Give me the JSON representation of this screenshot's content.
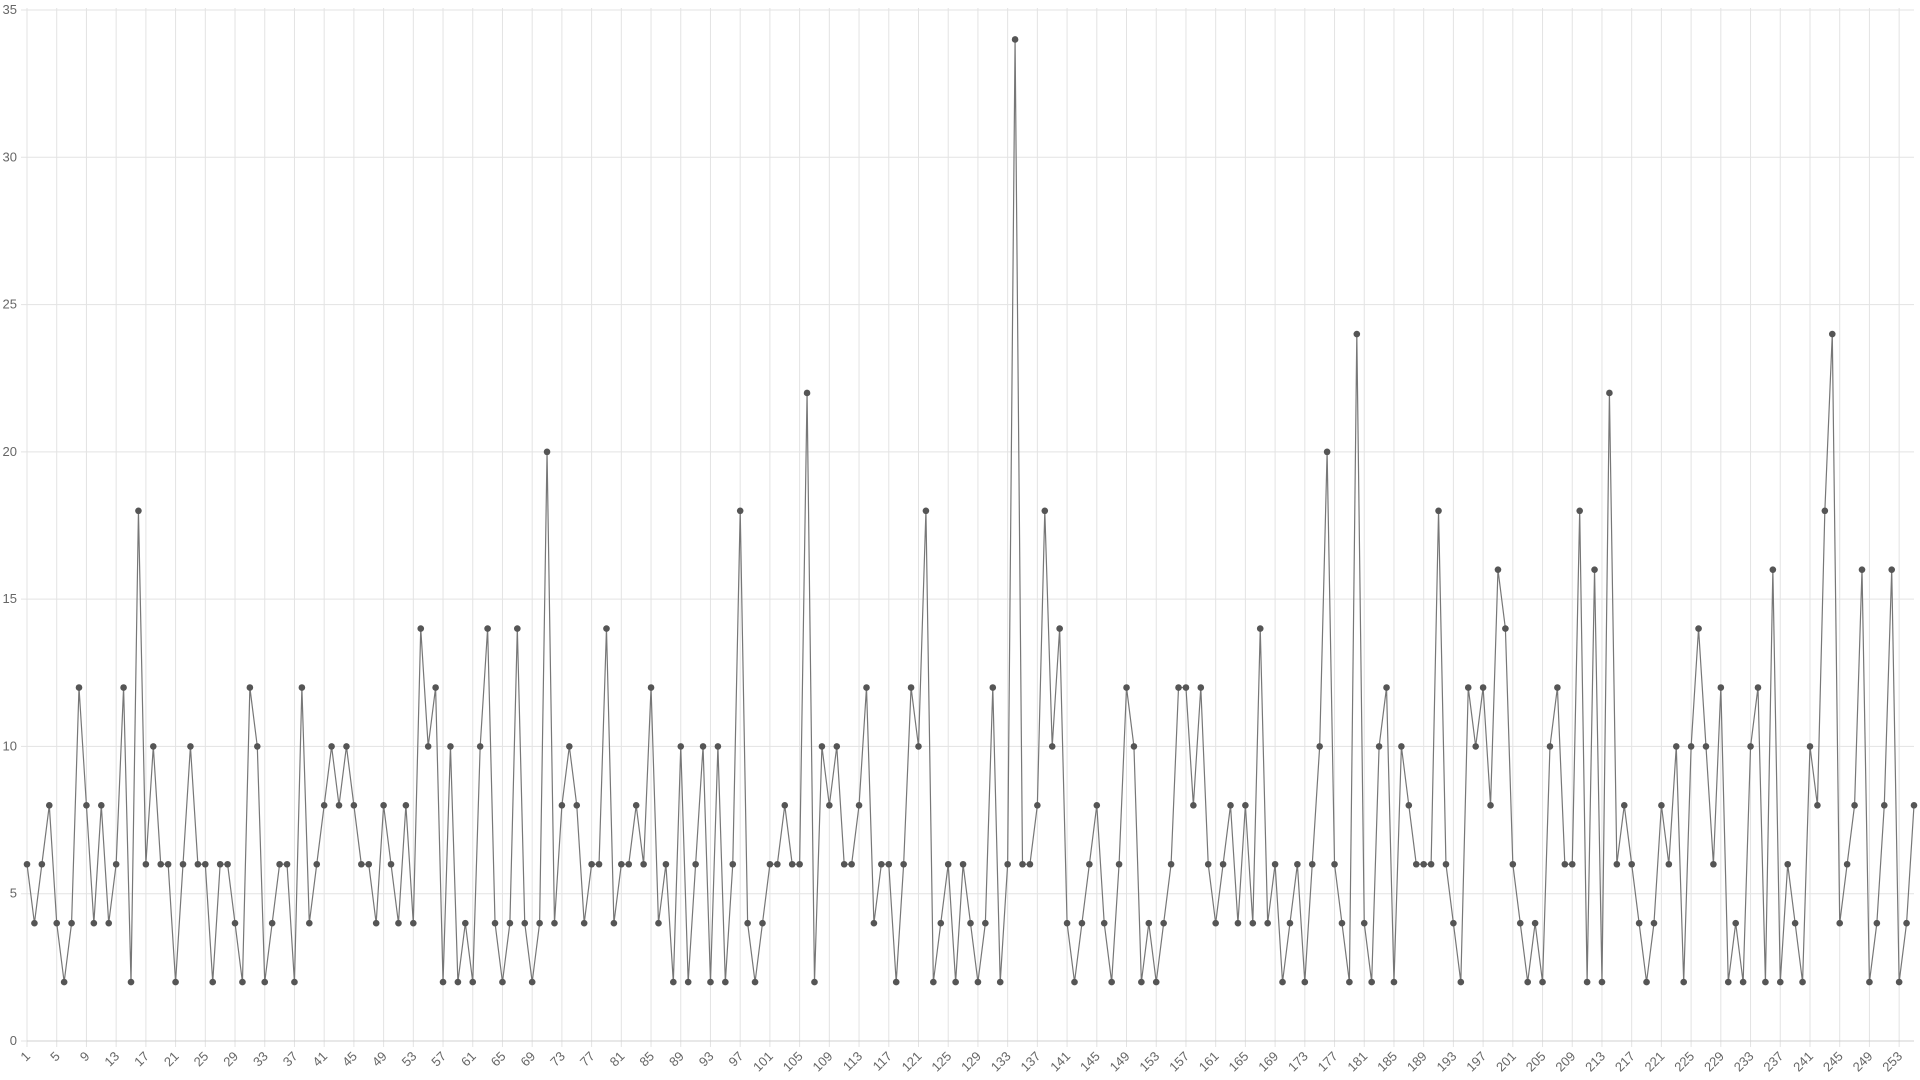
{
  "chart_data": {
    "type": "line",
    "categories": [
      1,
      null,
      null,
      null,
      5,
      null,
      null,
      null,
      9,
      null,
      null,
      null,
      13,
      null,
      null,
      null,
      17,
      null,
      null,
      null,
      21,
      null,
      null,
      null,
      25,
      null,
      null,
      null,
      29,
      null,
      null,
      null,
      33,
      null,
      null,
      null,
      37,
      null,
      null,
      null,
      41,
      null,
      null,
      null,
      45,
      null,
      null,
      null,
      49,
      null,
      null,
      null,
      53,
      null,
      null,
      null,
      57,
      null,
      null,
      null,
      61,
      null,
      null,
      null,
      65,
      null,
      null,
      null,
      69,
      null,
      null,
      null,
      73,
      null,
      null,
      null,
      77,
      null,
      null,
      null,
      81,
      null,
      null,
      null,
      85,
      null,
      null,
      null,
      89,
      null,
      null,
      null,
      93,
      null,
      null,
      null,
      97,
      null,
      null,
      null,
      101,
      null,
      null,
      null,
      105,
      null,
      null,
      null,
      109,
      null,
      null,
      null,
      113,
      null,
      null,
      null,
      117,
      null,
      null,
      null,
      121,
      null,
      null,
      null,
      125,
      null,
      null,
      null,
      129,
      null,
      null,
      null,
      133,
      null,
      null,
      null,
      137,
      null,
      null,
      null,
      141,
      null,
      null,
      null,
      145,
      null,
      null,
      null,
      149,
      null,
      null,
      null,
      153,
      null,
      null,
      null,
      157,
      null,
      null,
      null,
      161,
      null,
      null,
      null,
      165,
      null,
      null,
      null,
      169,
      null,
      null,
      null,
      173,
      null,
      null,
      null,
      177,
      null,
      null,
      null,
      181,
      null,
      null,
      null,
      185,
      null,
      null,
      null,
      189,
      null,
      null,
      null,
      193,
      null,
      null,
      null,
      197,
      null,
      null,
      null,
      201,
      null,
      null,
      null,
      205,
      null,
      null,
      null,
      209,
      null,
      null,
      null,
      213,
      null,
      null,
      null,
      217,
      null,
      null,
      null,
      221,
      null,
      null,
      null,
      225,
      null,
      null,
      null,
      229,
      null,
      null,
      null,
      233,
      null,
      null,
      null,
      237,
      null,
      null,
      null,
      241,
      null,
      null,
      null,
      245,
      null,
      null,
      null,
      249,
      null,
      null,
      null,
      253,
      null,
      null
    ],
    "values": [
      6,
      4,
      6,
      8,
      4,
      2,
      4,
      12,
      8,
      4,
      8,
      4,
      6,
      12,
      2,
      18,
      6,
      10,
      6,
      6,
      2,
      6,
      10,
      6,
      6,
      2,
      6,
      6,
      4,
      2,
      12,
      10,
      2,
      4,
      6,
      6,
      2,
      12,
      4,
      6,
      8,
      10,
      8,
      10,
      8,
      6,
      6,
      4,
      8,
      6,
      4,
      8,
      4,
      14,
      10,
      12,
      2,
      10,
      2,
      4,
      2,
      10,
      14,
      4,
      2,
      4,
      14,
      4,
      2,
      4,
      20,
      4,
      8,
      10,
      8,
      4,
      6,
      6,
      14,
      4,
      6,
      6,
      8,
      6,
      12,
      4,
      6,
      2,
      10,
      2,
      6,
      10,
      2,
      10,
      2,
      6,
      18,
      4,
      2,
      4,
      6,
      6,
      8,
      6,
      6,
      22,
      2,
      10,
      8,
      10,
      6,
      6,
      8,
      12,
      4,
      6,
      6,
      2,
      6,
      12,
      10,
      18,
      2,
      4,
      6,
      2,
      6,
      4,
      2,
      4,
      12,
      2,
      6,
      34,
      6,
      6,
      8,
      18,
      10,
      14,
      4,
      2,
      4,
      6,
      8,
      4,
      2,
      6,
      12,
      10,
      2,
      4,
      2,
      4,
      6,
      12,
      12,
      8,
      12,
      6,
      4,
      6,
      8,
      4,
      8,
      4,
      14,
      4,
      6,
      2,
      4,
      6,
      2,
      6,
      10,
      20,
      6,
      4,
      2,
      24,
      4,
      2,
      10,
      12,
      2,
      10,
      8,
      6,
      6,
      6,
      18,
      6,
      4,
      2,
      12,
      10,
      12,
      8,
      16,
      14,
      6,
      4,
      2,
      4,
      2,
      10,
      12,
      6,
      6,
      18,
      2,
      16,
      2,
      22,
      6,
      8,
      6,
      4,
      2,
      4,
      8,
      6,
      10,
      2,
      10,
      14,
      10,
      6,
      12,
      2,
      4,
      2,
      10,
      12,
      2,
      16,
      2,
      6,
      4,
      2,
      10,
      8,
      18,
      24,
      4,
      6,
      8,
      16,
      2,
      4,
      8,
      16,
      2,
      4,
      8
    ],
    "color": "#777777",
    "marker_color": "#555555",
    "ylim": [
      0,
      35
    ],
    "yticks": [
      0,
      5,
      10,
      15,
      20,
      25,
      30,
      35
    ],
    "grid": true
  }
}
